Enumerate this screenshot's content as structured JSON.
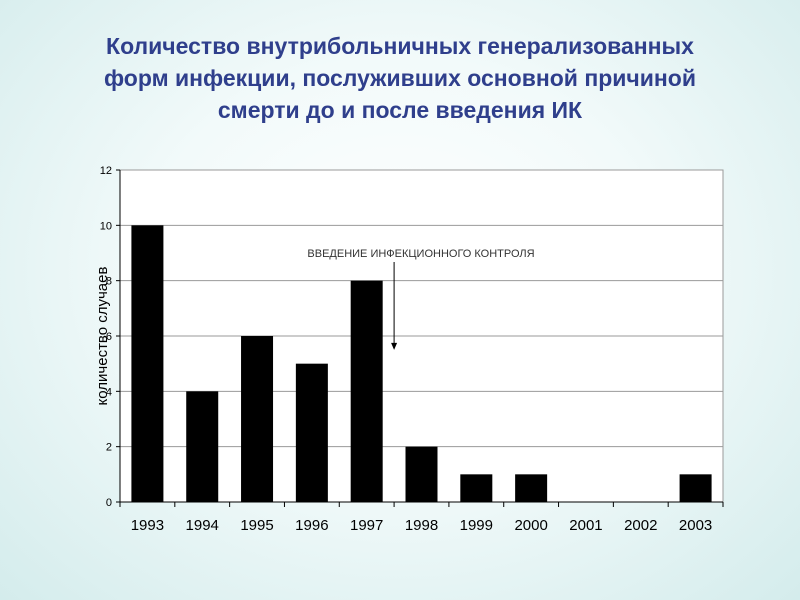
{
  "title_lines": [
    "Количество внутрибольничных генерализованных",
    "форм инфекции, послуживших основной причиной",
    "смерти до и после введения ИК"
  ],
  "chart_data": {
    "type": "bar",
    "categories": [
      "1993",
      "1994",
      "1995",
      "1996",
      "1997",
      "1998",
      "1999",
      "2000",
      "2001",
      "2002",
      "2003"
    ],
    "values": [
      10,
      4,
      6,
      5,
      8,
      2,
      1,
      1,
      0,
      0,
      1
    ],
    "ylabel": "количество случаев",
    "ylim": [
      0,
      12
    ],
    "yticks": [
      0,
      2,
      4,
      6,
      8,
      10,
      12
    ],
    "grid": true,
    "bar_color": "#000000",
    "annotation": {
      "text": "ВВЕДЕНИЕ ИНФЕКЦИОННОГО КОНТРОЛЯ",
      "x_between": [
        "1997",
        "1998"
      ],
      "arrow_to_y": 5.5
    }
  }
}
